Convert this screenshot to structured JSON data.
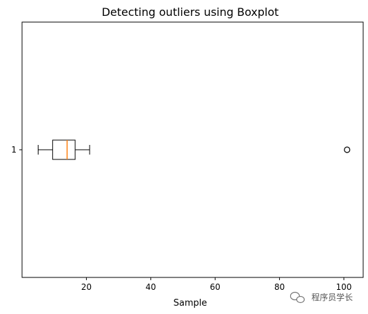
{
  "chart_data": {
    "type": "boxplot",
    "orientation": "horizontal",
    "title": "Detecting outliers using Boxplot",
    "xlabel": "Sample",
    "ylabel": "",
    "xlim": [
      0,
      106
    ],
    "xticks": [
      20,
      40,
      60,
      80,
      100
    ],
    "yticks": [
      "1"
    ],
    "grid": false,
    "series": [
      {
        "category": "1",
        "whisker_low": 5,
        "q1": 9.5,
        "median": 14,
        "q3": 16.5,
        "whisker_high": 21,
        "outliers": [
          101
        ]
      }
    ]
  },
  "watermark": {
    "text": "程序员学长",
    "icon": "wechat-logo-icon"
  },
  "colors": {
    "box": "#000000",
    "median": "#ff7f0e",
    "background": "#ffffff"
  }
}
